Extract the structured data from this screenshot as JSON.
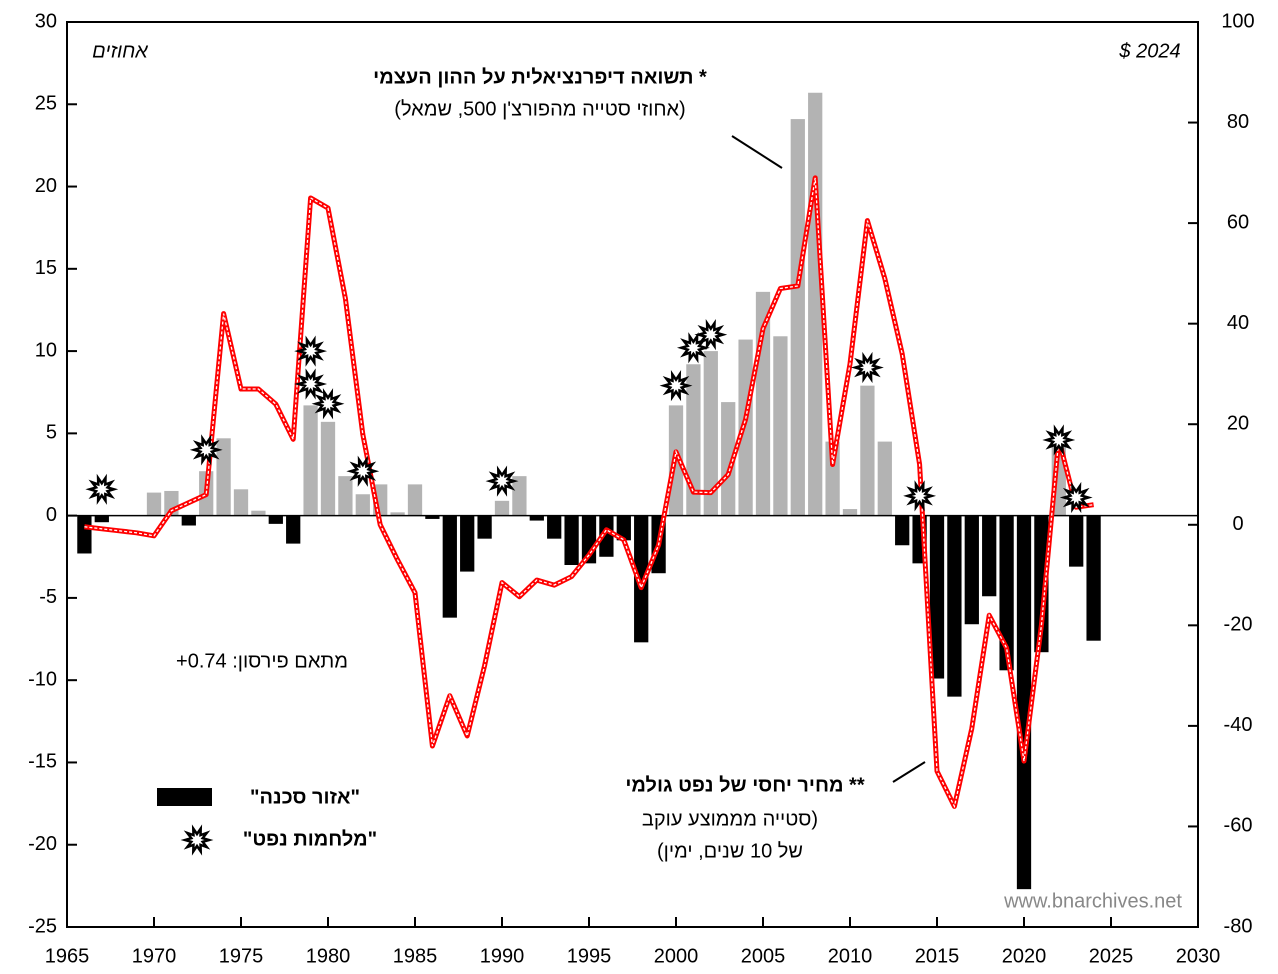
{
  "chart_data": {
    "type": "bar_line",
    "left_unit": "אחוזים",
    "right_unit": "$ 2024",
    "annotation_1": [
      "* תשואה דיפרנציאלית על ההון העצמי",
      "(אחוזי סטייה מהפורצ'ן 500, שמאל)"
    ],
    "annotation_2": [
      "** מחיר יחסי של נפט גולמי",
      "(סטייה מממוצע עוקב",
      "של 10 שנים, ימין)"
    ],
    "correlation": "מתאם פירסון: 0.74+",
    "watermark": "www.bnarchives.net",
    "xlim": [
      1965,
      2030
    ],
    "xticks": [
      1965,
      1970,
      1975,
      1980,
      1985,
      1990,
      1995,
      2000,
      2005,
      2010,
      2015,
      2020,
      2025,
      2030
    ],
    "ylim": [
      -25,
      30
    ],
    "yticks": [
      {
        "value": -25,
        "label": "-25"
      },
      {
        "value": -20,
        "label": "-20"
      },
      {
        "value": -15,
        "label": "-15"
      },
      {
        "value": -10,
        "label": "-10"
      },
      {
        "value": -5,
        "label": "-5"
      },
      0,
      5,
      10,
      15,
      20,
      25,
      30
    ],
    "y2lim": [
      -80,
      100
    ],
    "y2ticks": [
      {
        "value": -80,
        "label": "-80"
      },
      {
        "value": -60,
        "label": "-60"
      },
      {
        "value": -40,
        "label": "-40"
      },
      {
        "value": -20,
        "label": "-20"
      },
      0,
      20,
      40,
      60,
      80,
      100
    ],
    "x": [
      1966,
      1967,
      1968,
      1969,
      1970,
      1971,
      1972,
      1973,
      1974,
      1975,
      1976,
      1977,
      1978,
      1979,
      1980,
      1981,
      1982,
      1983,
      1984,
      1985,
      1986,
      1987,
      1988,
      1989,
      1990,
      1991,
      1992,
      1993,
      1994,
      1995,
      1996,
      1997,
      1998,
      1999,
      2000,
      2001,
      2002,
      2003,
      2004,
      2005,
      2006,
      2007,
      2008,
      2009,
      2010,
      2011,
      2012,
      2013,
      2014,
      2015,
      2016,
      2017,
      2018,
      2019,
      2020,
      2021,
      2022,
      2023,
      2024
    ],
    "bars": {
      "positive_color": "#b3b3b3",
      "negative_color": "#000000",
      "values": [
        -2.3,
        -0.4,
        0,
        0,
        1.4,
        1.5,
        -0.6,
        2.7,
        4.7,
        1.6,
        0.3,
        -0.5,
        -1.7,
        6.7,
        5.7,
        2.4,
        1.3,
        1.9,
        0.2,
        1.9,
        -0.2,
        -6.2,
        -3.4,
        -1.4,
        0.9,
        2.4,
        -0.3,
        -1.4,
        -3.0,
        -2.9,
        -2.5,
        -1.5,
        -7.7,
        -3.5,
        6.7,
        9.2,
        10.0,
        6.9,
        10.7,
        13.6,
        10.9,
        24.1,
        25.7,
        4.5,
        0.4,
        7.9,
        4.5,
        -1.8,
        -2.9,
        -9.9,
        -11.0,
        -6.6,
        -4.9,
        -9.4,
        -22.7,
        -8.3,
        4.2,
        -3.1,
        -7.6
      ]
    },
    "line": {
      "axis": "y2",
      "color": "#ff0000",
      "values": [
        -0.4,
        -0.8,
        -1.2,
        -1.6,
        -2.2,
        2.8,
        4.4,
        6,
        42,
        27,
        27,
        24,
        17,
        65,
        63,
        45,
        18,
        0,
        -7,
        -13.5,
        -44,
        -34,
        -42,
        -28,
        -11.5,
        -14.3,
        -11,
        -12,
        -10.3,
        -6,
        -1,
        -3,
        -12.5,
        -4,
        14.5,
        6.5,
        6.4,
        10,
        21,
        39,
        47,
        47.5,
        69,
        12,
        32,
        60.5,
        49,
        34,
        12,
        -49,
        -56,
        -40.5,
        -18,
        -24.5,
        -47,
        -20,
        17,
        3.5,
        4
      ]
    },
    "oil_wars": {
      "x": [
        1967,
        1973,
        1979,
        1979,
        1980,
        1982,
        1990,
        2000,
        2001,
        2002,
        2011,
        2014,
        2022,
        2023
      ],
      "values": [
        1.6,
        4,
        10,
        8,
        6.8,
        2.7,
        2.1,
        7.9,
        10.2,
        11,
        9,
        1.2,
        4.6,
        1.1
      ]
    },
    "legend": [
      "\"אזור סכנה\"",
      "\"מלחמות נפט\""
    ]
  }
}
